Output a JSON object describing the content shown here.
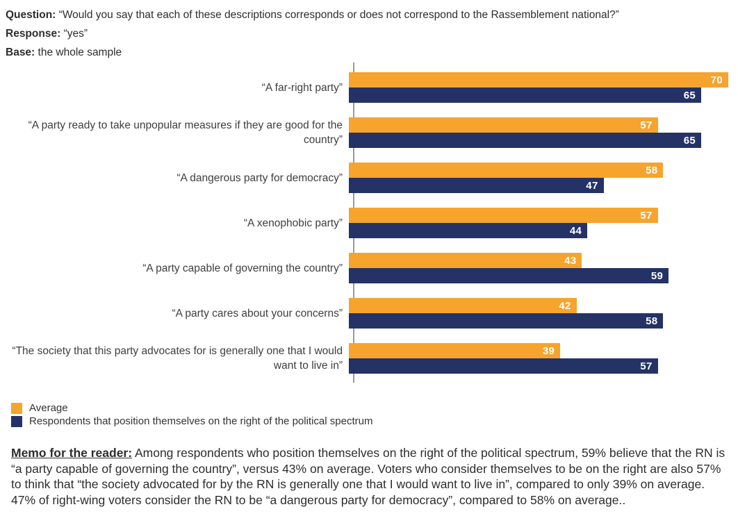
{
  "header": {
    "question_label": "Question:",
    "question_text": "“Would you say that each of these descriptions corresponds or does not correspond to the Rassemblement national?”",
    "response_label": "Response:",
    "response_text": "“yes”",
    "base_label": "Base:",
    "base_text": "the whole sample"
  },
  "chart_data": {
    "type": "bar",
    "orientation": "horizontal",
    "categories": [
      "“A far-right party”",
      "“A party ready to take unpopular measures if they are good for the country”",
      "“A dangerous party for democracy”",
      "“A xenophobic party”",
      "“A party capable of governing the country”",
      "“A party cares about your concerns”",
      "“The society that this party advocates for is generally one that I would want to live in”"
    ],
    "series": [
      {
        "name": "Average",
        "color": "#F6A42D",
        "values": [
          70,
          57,
          58,
          57,
          43,
          42,
          39
        ]
      },
      {
        "name": "Respondents that position themselves on the right of the political spectrum",
        "color": "#243266",
        "values": [
          65,
          65,
          47,
          44,
          59,
          58,
          57
        ]
      }
    ],
    "xlim": [
      0,
      70
    ],
    "value_labels": "inside-end",
    "grid": "off",
    "legend_position": "bottom-left",
    "axis_color": "#9a9a9a"
  },
  "memo": {
    "label": "Memo for the reader:",
    "text": " Among respondents who position themselves on the right of the political spectrum, 59% believe that the RN is “a party capable of governing the country”, versus 43% on average. Voters who consider themselves to be on the right are also 57% to think that “the society advocated for by the RN is generally one that I would want to live in”, compared to only 39% on average. 47% of right-wing voters consider the RN to be “a dangerous party for democracy”, compared to 58% on average.."
  }
}
